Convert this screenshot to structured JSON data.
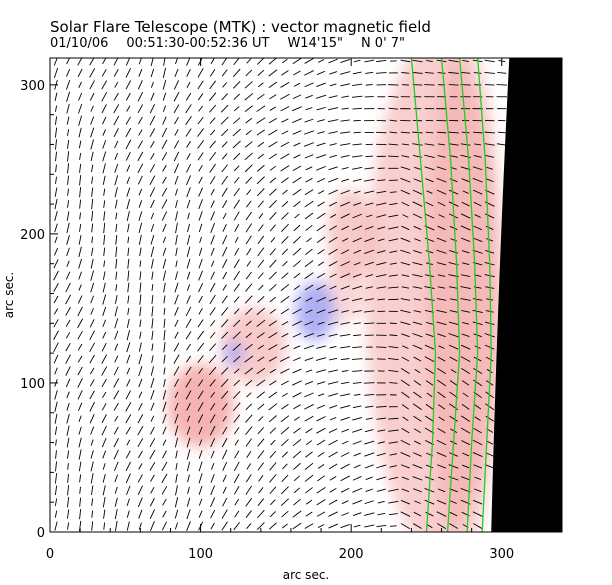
{
  "title": "Solar Flare Telescope (MTK) : vector magnetic field",
  "subtitle": {
    "date": "01/10/06",
    "time": "00:51:30-00:52:36 UT",
    "position": "W14'15\"",
    "latitude": "N 0' 7\""
  },
  "chart_data": {
    "type": "vector-field",
    "xlabel": "arc sec.",
    "ylabel": "arc sec.",
    "xlim": [
      0,
      340
    ],
    "ylim": [
      0,
      318
    ],
    "xticks": [
      0,
      100,
      200,
      300
    ],
    "yticks": [
      0,
      100,
      200,
      300
    ],
    "xtick_labels": [
      "0",
      "100",
      "200",
      "300"
    ],
    "ytick_labels": [
      "0",
      "100",
      "200",
      "300"
    ],
    "limb_x_at_top": 305,
    "limb_x_at_bottom": 293,
    "limb_x_max": 298,
    "vector_grid_step": 8,
    "vector_length": 7,
    "contours": [
      {
        "name": "contour-1",
        "points": [
          [
            240,
            318
          ],
          [
            246,
            250
          ],
          [
            252,
            180
          ],
          [
            256,
            120
          ],
          [
            254,
            60
          ],
          [
            250,
            0
          ]
        ]
      },
      {
        "name": "contour-2",
        "points": [
          [
            260,
            318
          ],
          [
            266,
            250
          ],
          [
            270,
            180
          ],
          [
            272,
            120
          ],
          [
            268,
            60
          ],
          [
            264,
            0
          ]
        ]
      },
      {
        "name": "contour-3",
        "points": [
          [
            272,
            318
          ],
          [
            278,
            250
          ],
          [
            282,
            180
          ],
          [
            284,
            120
          ],
          [
            280,
            60
          ],
          [
            277,
            0
          ]
        ]
      },
      {
        "name": "contour-4",
        "points": [
          [
            284,
            318
          ],
          [
            289,
            250
          ],
          [
            292,
            180
          ],
          [
            293,
            120
          ],
          [
            290,
            60
          ],
          [
            287,
            0
          ]
        ]
      }
    ],
    "field_patches": [
      {
        "polarity": "positive",
        "color": "#f4a6a6",
        "center": [
          100,
          85
        ],
        "radius": [
          22,
          28
        ],
        "strength": 0.85
      },
      {
        "polarity": "positive",
        "color": "#f4a6a6",
        "center": [
          135,
          125
        ],
        "radius": [
          22,
          26
        ],
        "strength": 0.6
      },
      {
        "polarity": "positive",
        "color": "#f4a6a6",
        "center": [
          195,
          160
        ],
        "radius": [
          14,
          20
        ],
        "strength": 0.45
      },
      {
        "polarity": "positive",
        "color": "#f4a6a6",
        "center": [
          200,
          200
        ],
        "radius": [
          16,
          30
        ],
        "strength": 0.6
      },
      {
        "polarity": "positive",
        "color": "#f4a6a6",
        "center": [
          255,
          160
        ],
        "radius": [
          45,
          170
        ],
        "strength": 0.55
      },
      {
        "polarity": "positive",
        "color": "#f4a6a6",
        "center": [
          275,
          160
        ],
        "radius": [
          25,
          170
        ],
        "strength": 0.5
      },
      {
        "polarity": "negative",
        "color": "#a6a6f4",
        "center": [
          176,
          148
        ],
        "radius": [
          13,
          20
        ],
        "strength": 0.9
      },
      {
        "polarity": "negative",
        "color": "#a6a6f4",
        "center": [
          122,
          120
        ],
        "radius": [
          6,
          8
        ],
        "strength": 0.9
      }
    ],
    "colors": {
      "contour": "#22cc22",
      "vector": "#000000",
      "limb": "#000000",
      "positive": "#f4a6a6",
      "negative": "#a6a6f4"
    }
  }
}
